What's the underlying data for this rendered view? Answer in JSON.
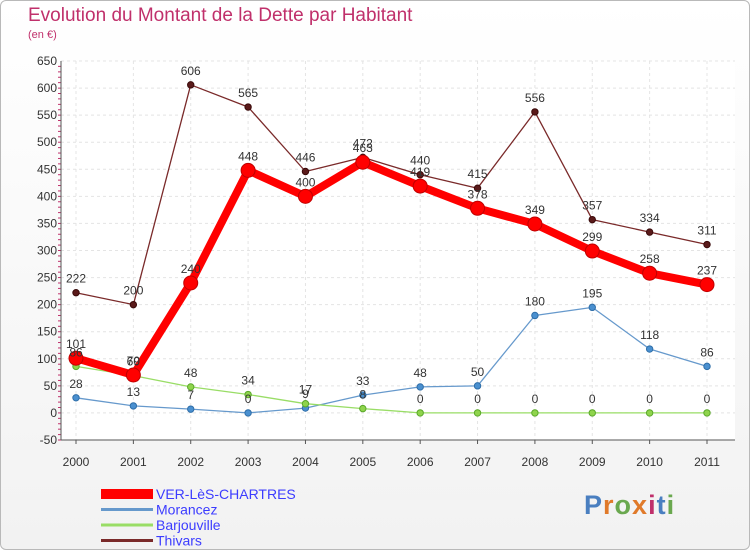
{
  "title": "Evolution du Montant de la Dette par Habitant",
  "subtitle": "(en €)",
  "logo_text": "Proxiti",
  "colors": {
    "title": "#c0306b",
    "ver": "#ff0000",
    "morancez": "#6699cc",
    "barjouville": "#99dd66",
    "thivars": "#7a2a2a",
    "legend_text": "#3c3cff"
  },
  "chart_data": {
    "type": "line",
    "title": "Evolution du Montant de la Dette par Habitant",
    "subtitle": "(en €)",
    "xlabel": "",
    "ylabel": "",
    "x": [
      "2000",
      "2001",
      "2002",
      "2003",
      "2004",
      "2005",
      "2006",
      "2007",
      "2008",
      "2009",
      "2010",
      "2011"
    ],
    "ylim": [
      -50,
      650
    ],
    "yticks": [
      -50,
      0,
      50,
      100,
      150,
      200,
      250,
      300,
      350,
      400,
      450,
      500,
      550,
      600,
      650
    ],
    "grid": true,
    "legend_position": "bottom-left",
    "series": [
      {
        "name": "VER-LèS-CHARTRES",
        "values": [
          101,
          70,
          240,
          448,
          400,
          463,
          419,
          378,
          349,
          299,
          258,
          237
        ],
        "labels": [
          "101",
          "70",
          "240",
          "448",
          "400",
          "463",
          "419",
          "378",
          "349",
          "299",
          "258",
          "237"
        ]
      },
      {
        "name": "Morancez",
        "values": [
          28,
          13,
          7,
          0,
          9,
          33,
          48,
          50,
          180,
          195,
          118,
          86
        ],
        "labels": [
          "28",
          "13",
          "7",
          "0",
          "9",
          "33",
          "48",
          "50",
          "180",
          "195",
          "118",
          "86"
        ]
      },
      {
        "name": "Barjouville",
        "values": [
          86,
          69,
          48,
          34,
          17,
          8,
          0,
          0,
          0,
          0,
          0,
          0
        ],
        "labels": [
          "86",
          "69",
          "48",
          "34",
          "17",
          "8",
          "0",
          "0",
          "0",
          "0",
          "0",
          "0"
        ]
      },
      {
        "name": "Thivars",
        "values": [
          222,
          200,
          606,
          565,
          446,
          472,
          440,
          415,
          556,
          357,
          334,
          311
        ],
        "labels": [
          "222",
          "200",
          "606",
          "565",
          "446",
          "472",
          "440",
          "415",
          "556",
          "357",
          "334",
          "311"
        ]
      }
    ]
  }
}
